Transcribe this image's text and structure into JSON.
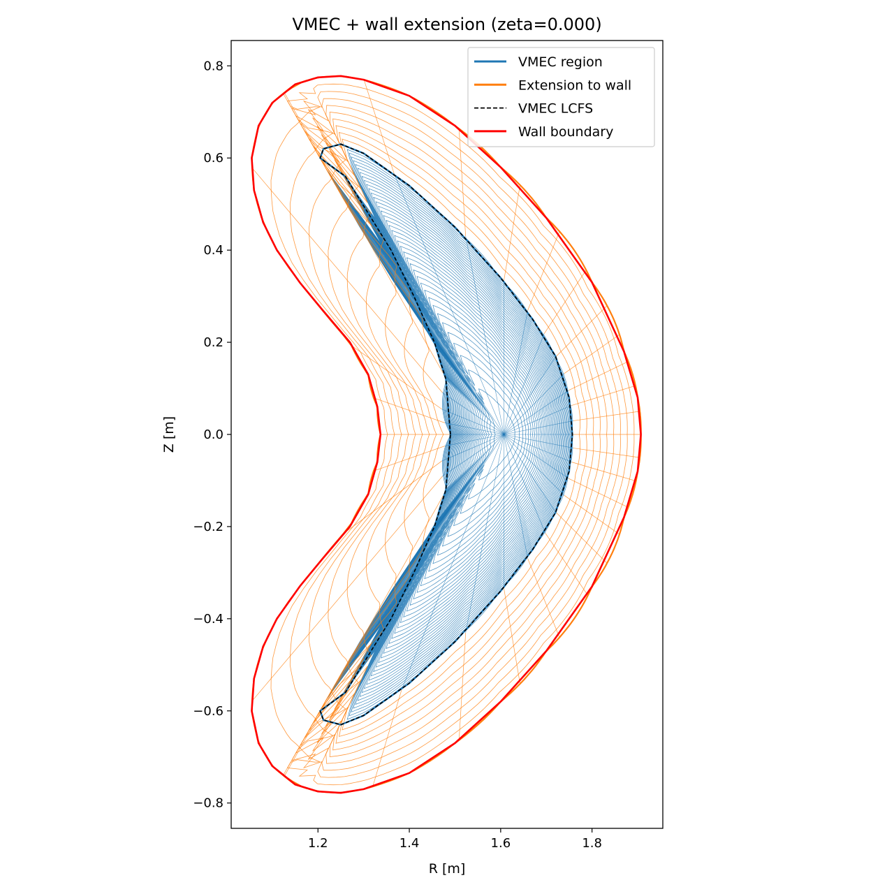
{
  "chart_data": {
    "type": "line",
    "title": "VMEC + wall extension (zeta=0.000)",
    "xlabel": "R [m]",
    "ylabel": "Z [m]",
    "xlim": [
      1.01,
      1.955
    ],
    "ylim": [
      -0.855,
      0.855
    ],
    "x_ticks": [
      1.2,
      1.4,
      1.6,
      1.8
    ],
    "x_tick_labels": [
      "1.2",
      "1.4",
      "1.6",
      "1.8"
    ],
    "y_ticks": [
      -0.8,
      -0.6,
      -0.4,
      -0.2,
      0.0,
      0.2,
      0.4,
      0.6,
      0.8
    ],
    "y_tick_labels": [
      "−0.8",
      "−0.6",
      "−0.4",
      "−0.2",
      "0.0",
      "0.2",
      "0.4",
      "0.6",
      "0.8"
    ],
    "grid": false,
    "legend_position": "top-right",
    "legend": [
      {
        "label": "VMEC region",
        "color": "#1f77b4",
        "style": "solid"
      },
      {
        "label": "Extension to wall",
        "color": "#ff7f0e",
        "style": "solid"
      },
      {
        "label": "VMEC LCFS",
        "color": "#000000",
        "style": "dashed"
      },
      {
        "label": "Wall boundary",
        "color": "#ff0000",
        "style": "solid"
      }
    ],
    "series": [
      {
        "name": "VMEC LCFS",
        "color": "#000000",
        "points": [
          [
            1.49,
            0.0
          ],
          [
            1.48,
            0.12
          ],
          [
            1.455,
            0.2
          ],
          [
            1.41,
            0.3
          ],
          [
            1.36,
            0.4
          ],
          [
            1.31,
            0.48
          ],
          [
            1.26,
            0.56
          ],
          [
            1.205,
            0.6
          ],
          [
            1.212,
            0.62
          ],
          [
            1.25,
            0.63
          ],
          [
            1.3,
            0.61
          ],
          [
            1.4,
            0.54
          ],
          [
            1.5,
            0.45
          ],
          [
            1.6,
            0.34
          ],
          [
            1.67,
            0.25
          ],
          [
            1.72,
            0.17
          ],
          [
            1.75,
            0.08
          ],
          [
            1.757,
            0.0
          ],
          [
            1.75,
            -0.08
          ],
          [
            1.72,
            -0.17
          ],
          [
            1.67,
            -0.25
          ],
          [
            1.6,
            -0.34
          ],
          [
            1.5,
            -0.45
          ],
          [
            1.4,
            -0.54
          ],
          [
            1.3,
            -0.61
          ],
          [
            1.25,
            -0.63
          ],
          [
            1.212,
            -0.62
          ],
          [
            1.205,
            -0.6
          ],
          [
            1.26,
            -0.56
          ],
          [
            1.31,
            -0.48
          ],
          [
            1.36,
            -0.4
          ],
          [
            1.41,
            -0.3
          ],
          [
            1.455,
            -0.2
          ],
          [
            1.48,
            -0.12
          ],
          [
            1.49,
            0.0
          ]
        ]
      },
      {
        "name": "Wall boundary",
        "color": "#ff0000",
        "points": [
          [
            1.337,
            0.0
          ],
          [
            1.33,
            0.06
          ],
          [
            1.31,
            0.13
          ],
          [
            1.27,
            0.2
          ],
          [
            1.21,
            0.27
          ],
          [
            1.16,
            0.33
          ],
          [
            1.11,
            0.4
          ],
          [
            1.08,
            0.46
          ],
          [
            1.06,
            0.53
          ],
          [
            1.055,
            0.6
          ],
          [
            1.07,
            0.67
          ],
          [
            1.1,
            0.72
          ],
          [
            1.15,
            0.76
          ],
          [
            1.2,
            0.775
          ],
          [
            1.25,
            0.778
          ],
          [
            1.3,
            0.77
          ],
          [
            1.4,
            0.735
          ],
          [
            1.5,
            0.67
          ],
          [
            1.6,
            0.58
          ],
          [
            1.7,
            0.47
          ],
          [
            1.8,
            0.33
          ],
          [
            1.87,
            0.18
          ],
          [
            1.9,
            0.08
          ],
          [
            1.907,
            0.0
          ],
          [
            1.9,
            -0.08
          ],
          [
            1.87,
            -0.18
          ],
          [
            1.8,
            -0.33
          ],
          [
            1.7,
            -0.47
          ],
          [
            1.6,
            -0.58
          ],
          [
            1.5,
            -0.67
          ],
          [
            1.4,
            -0.735
          ],
          [
            1.3,
            -0.77
          ],
          [
            1.25,
            -0.778
          ],
          [
            1.2,
            -0.775
          ],
          [
            1.15,
            -0.76
          ],
          [
            1.1,
            -0.72
          ],
          [
            1.07,
            -0.67
          ],
          [
            1.055,
            -0.6
          ],
          [
            1.06,
            -0.53
          ],
          [
            1.08,
            -0.46
          ],
          [
            1.11,
            -0.4
          ],
          [
            1.16,
            -0.33
          ],
          [
            1.21,
            -0.27
          ],
          [
            1.27,
            -0.2
          ],
          [
            1.31,
            -0.13
          ],
          [
            1.33,
            -0.06
          ],
          [
            1.337,
            0.0
          ]
        ]
      },
      {
        "name": "VMEC region",
        "color": "#1f77b4",
        "magnetic_axis": [
          1.607,
          0.0
        ],
        "flux_surface_count": 40,
        "radial_line_count": 32
      },
      {
        "name": "Extension to wall",
        "color": "#ff7f0e",
        "shell_count": 10,
        "radial_line_count": 32
      }
    ]
  }
}
